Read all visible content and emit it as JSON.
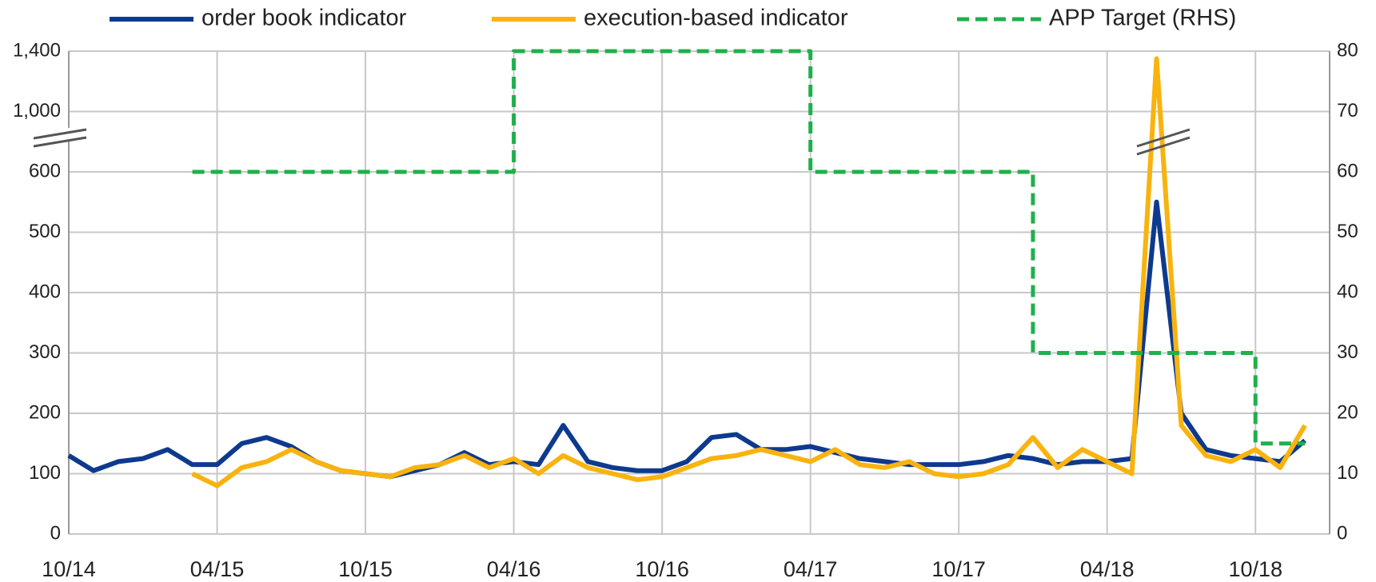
{
  "chart_data": {
    "type": "line",
    "x": [
      "2014-10",
      "2014-11",
      "2014-12",
      "2015-01",
      "2015-02",
      "2015-03",
      "2015-04",
      "2015-05",
      "2015-06",
      "2015-07",
      "2015-08",
      "2015-09",
      "2015-10",
      "2015-11",
      "2015-12",
      "2016-01",
      "2016-02",
      "2016-03",
      "2016-04",
      "2016-05",
      "2016-06",
      "2016-07",
      "2016-08",
      "2016-09",
      "2016-10",
      "2016-11",
      "2016-12",
      "2017-01",
      "2017-02",
      "2017-03",
      "2017-04",
      "2017-05",
      "2017-06",
      "2017-07",
      "2017-08",
      "2017-09",
      "2017-10",
      "2017-11",
      "2017-12",
      "2018-01",
      "2018-02",
      "2018-03",
      "2018-04",
      "2018-05",
      "2018-06",
      "2018-07",
      "2018-08",
      "2018-09",
      "2018-10",
      "2018-11",
      "2018-12"
    ],
    "series": [
      {
        "name": "order book indicator",
        "color": "#0d3a8e",
        "axis": "y",
        "values": [
          130,
          105,
          120,
          125,
          140,
          115,
          115,
          150,
          160,
          145,
          120,
          105,
          100,
          95,
          105,
          115,
          135,
          115,
          120,
          115,
          180,
          120,
          110,
          105,
          105,
          120,
          160,
          165,
          140,
          140,
          145,
          135,
          125,
          120,
          115,
          115,
          115,
          120,
          130,
          125,
          115,
          120,
          120,
          125,
          550,
          200,
          140,
          130,
          125,
          120,
          155
        ]
      },
      {
        "name": "execution-based indicator",
        "color": "#f9b30f",
        "axis": "y",
        "values": [
          null,
          null,
          null,
          null,
          null,
          100,
          80,
          110,
          120,
          140,
          120,
          105,
          100,
          95,
          110,
          115,
          130,
          110,
          125,
          100,
          130,
          110,
          100,
          90,
          95,
          110,
          125,
          130,
          140,
          130,
          120,
          140,
          115,
          110,
          120,
          100,
          95,
          100,
          115,
          160,
          110,
          140,
          120,
          100,
          1350,
          180,
          130,
          120,
          140,
          110,
          180
        ]
      },
      {
        "name": "APP Target (RHS)",
        "color": "#1fb04b",
        "axis": "y2",
        "dashed": true,
        "step": true,
        "values": [
          null,
          null,
          null,
          null,
          null,
          60,
          60,
          60,
          60,
          60,
          60,
          60,
          60,
          60,
          60,
          60,
          60,
          60,
          80,
          80,
          80,
          80,
          80,
          80,
          80,
          80,
          80,
          80,
          80,
          80,
          60,
          60,
          60,
          60,
          60,
          60,
          60,
          60,
          60,
          30,
          30,
          30,
          30,
          30,
          30,
          30,
          30,
          30,
          15,
          15,
          15
        ]
      }
    ],
    "xlim": [
      "2014-10",
      "2019-01"
    ],
    "xticks": [
      {
        "value": "2014-10",
        "label": "10/14"
      },
      {
        "value": "2015-04",
        "label": "04/15"
      },
      {
        "value": "2015-10",
        "label": "10/15"
      },
      {
        "value": "2016-04",
        "label": "04/16"
      },
      {
        "value": "2016-10",
        "label": "10/16"
      },
      {
        "value": "2017-04",
        "label": "04/17"
      },
      {
        "value": "2017-10",
        "label": "10/17"
      },
      {
        "value": "2018-04",
        "label": "04/18"
      },
      {
        "value": "2018-10",
        "label": "10/18"
      }
    ],
    "ylim": [
      0,
      1400
    ],
    "yticks": [
      0,
      100,
      200,
      300,
      400,
      500,
      600,
      {
        "value": 1000,
        "label": "1,000"
      },
      {
        "value": 1400,
        "label": "1,400"
      }
    ],
    "y2lim": [
      0,
      80
    ],
    "y2ticks": [
      0,
      10,
      20,
      30,
      40,
      50,
      60,
      70,
      80
    ],
    "grid": true,
    "legend": "top"
  }
}
